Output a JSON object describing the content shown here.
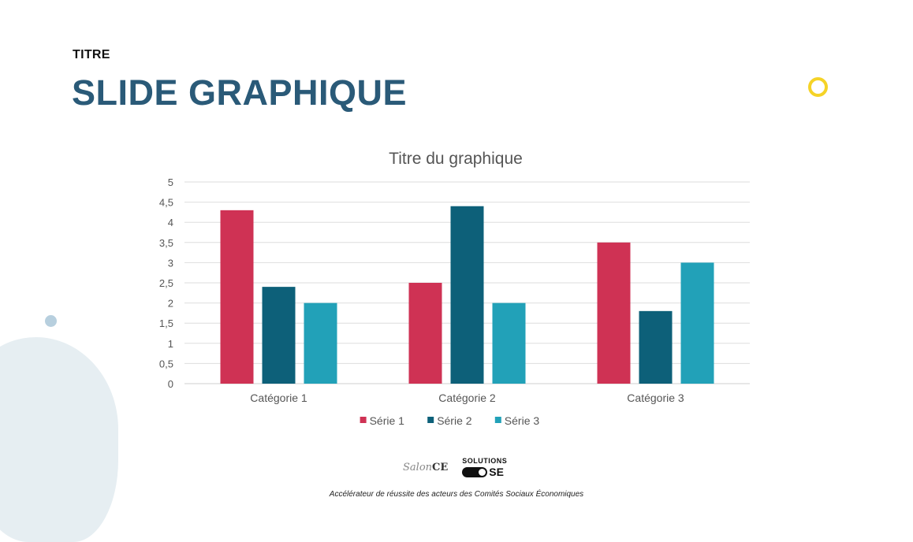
{
  "slide": {
    "kicker": "TITRE",
    "title": "SLIDE GRAPHIQUE"
  },
  "chart_data": {
    "type": "bar",
    "title": "Titre du graphique",
    "categories": [
      "Catégorie 1",
      "Catégorie 2",
      "Catégorie 3"
    ],
    "series": [
      {
        "name": "Série 1",
        "values": [
          4.3,
          2.5,
          3.5
        ],
        "color": "#cf3254"
      },
      {
        "name": "Série 2",
        "values": [
          2.4,
          4.4,
          1.8
        ],
        "color": "#0d6079"
      },
      {
        "name": "Série 3",
        "values": [
          2.0,
          2.0,
          3.0
        ],
        "color": "#22a1b8"
      }
    ],
    "yticks": [
      "0",
      "0,5",
      "1",
      "1,5",
      "2",
      "2,5",
      "3",
      "3,5",
      "4",
      "4,5",
      "5"
    ],
    "ylim": [
      0,
      5
    ],
    "grid": true,
    "legend": "bottom"
  },
  "footer": {
    "logo_left": "SalonCE",
    "logo_left_ce": "CE",
    "logo_left_prefix": "Salon",
    "logo_right_top": "SOLUTIONS",
    "logo_right_bottom": "SE",
    "tagline": "Accélérateur de réussite des acteurs des Comités Sociaux Économiques"
  }
}
